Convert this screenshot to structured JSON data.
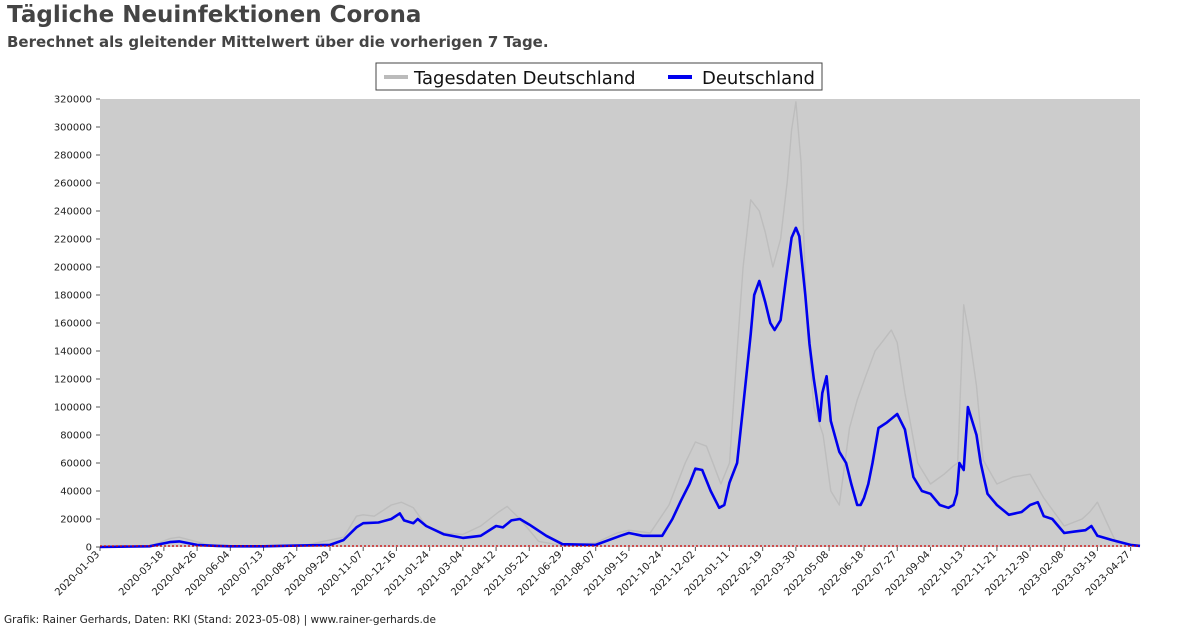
{
  "header": {
    "title": "Tägliche Neuinfektionen Corona",
    "subtitle": "Berechnet als gleitender Mittelwert über die vorherigen 7 Tage."
  },
  "footer": {
    "credit": "Grafik: Rainer Gerhards, Daten: RKI (Stand: 2023-05-08) | www.rainer-gerhards.de"
  },
  "chart_data": {
    "type": "line",
    "title": "Tägliche Neuinfektionen Corona",
    "subtitle": "Berechnet als gleitender Mittelwert über die vorherigen 7 Tage.",
    "xlabel": "",
    "ylabel": "",
    "ylim": [
      0,
      320000
    ],
    "xlim": [
      "2020-01-03",
      "2023-05-08"
    ],
    "grid": false,
    "legend_placement": "top-center",
    "x_ticks": [
      "2020-01-03",
      "2020-03-18",
      "2020-04-26",
      "2020-06-04",
      "2020-07-13",
      "2020-08-21",
      "2020-09-29",
      "2020-11-07",
      "2020-12-16",
      "2021-01-24",
      "2021-03-04",
      "2021-04-12",
      "2021-05-21",
      "2021-06-29",
      "2021-08-07",
      "2021-09-15",
      "2021-10-24",
      "2021-12-02",
      "2022-01-11",
      "2022-02-19",
      "2022-03-30",
      "2022-05-08",
      "2022-06-18",
      "2022-07-27",
      "2022-09-04",
      "2022-10-13",
      "2022-11-21",
      "2022-12-30",
      "2023-02-08",
      "2023-03-19",
      "2023-04-27"
    ],
    "y_ticks": [
      0,
      20000,
      40000,
      60000,
      80000,
      100000,
      120000,
      140000,
      160000,
      180000,
      200000,
      220000,
      240000,
      260000,
      280000,
      300000,
      320000
    ],
    "colors": {
      "plot_bg": "#cccccc",
      "daily": "#bbbbbb",
      "avg": "#0000ee",
      "baseline": "#cc0000"
    },
    "series": [
      {
        "name": "Tagesdaten Deutschland",
        "style": "daily",
        "x": [
          "2020-01-03",
          "2020-03-01",
          "2020-03-25",
          "2020-04-05",
          "2020-05-10",
          "2020-07-01",
          "2020-09-01",
          "2020-10-15",
          "2020-10-30",
          "2020-11-07",
          "2020-11-20",
          "2020-12-10",
          "2020-12-22",
          "2021-01-05",
          "2021-01-20",
          "2021-02-10",
          "2021-03-04",
          "2021-03-25",
          "2021-04-15",
          "2021-04-25",
          "2021-05-10",
          "2021-06-01",
          "2021-06-29",
          "2021-08-07",
          "2021-09-01",
          "2021-09-15",
          "2021-10-10",
          "2021-11-01",
          "2021-11-20",
          "2021-12-02",
          "2021-12-15",
          "2022-01-01",
          "2022-01-11",
          "2022-01-20",
          "2022-01-27",
          "2022-02-05",
          "2022-02-15",
          "2022-02-22",
          "2022-03-03",
          "2022-03-12",
          "2022-03-20",
          "2022-03-25",
          "2022-03-30",
          "2022-04-05",
          "2022-04-12",
          "2022-04-20",
          "2022-05-01",
          "2022-05-10",
          "2022-05-20",
          "2022-06-01",
          "2022-06-10",
          "2022-06-20",
          "2022-07-01",
          "2022-07-10",
          "2022-07-20",
          "2022-07-27",
          "2022-08-05",
          "2022-08-20",
          "2022-09-04",
          "2022-09-20",
          "2022-10-01",
          "2022-10-06",
          "2022-10-13",
          "2022-10-20",
          "2022-10-28",
          "2022-11-05",
          "2022-11-21",
          "2022-12-10",
          "2022-12-30",
          "2023-01-15",
          "2023-02-08",
          "2023-03-01",
          "2023-03-10",
          "2023-03-19",
          "2023-04-10",
          "2023-05-08"
        ],
        "values": [
          0,
          500,
          6000,
          7000,
          1500,
          500,
          1500,
          7000,
          22000,
          23000,
          22000,
          30000,
          32000,
          28000,
          15000,
          10000,
          9000,
          15000,
          25000,
          29000,
          20000,
          4000,
          1000,
          3000,
          10000,
          12000,
          10000,
          30000,
          60000,
          75000,
          72000,
          45000,
          60000,
          140000,
          200000,
          248000,
          240000,
          225000,
          200000,
          220000,
          262000,
          298000,
          318000,
          275000,
          160000,
          100000,
          80000,
          40000,
          30000,
          85000,
          105000,
          122000,
          140000,
          147000,
          155000,
          146000,
          110000,
          60000,
          45000,
          52000,
          58000,
          60000,
          173000,
          150000,
          115000,
          62000,
          45000,
          50000,
          52000,
          35000,
          15000,
          20000,
          25000,
          32000,
          3000,
          1000
        ]
      },
      {
        "name": "Deutschland",
        "style": "avg",
        "x": [
          "2020-01-03",
          "2020-03-01",
          "2020-03-25",
          "2020-04-05",
          "2020-04-26",
          "2020-05-20",
          "2020-06-04",
          "2020-07-13",
          "2020-08-21",
          "2020-09-29",
          "2020-10-15",
          "2020-10-30",
          "2020-11-07",
          "2020-11-25",
          "2020-12-10",
          "2020-12-20",
          "2020-12-25",
          "2021-01-05",
          "2021-01-10",
          "2021-01-20",
          "2021-02-10",
          "2021-03-04",
          "2021-03-25",
          "2021-04-12",
          "2021-04-20",
          "2021-04-30",
          "2021-05-10",
          "2021-05-21",
          "2021-06-10",
          "2021-06-29",
          "2021-08-07",
          "2021-09-05",
          "2021-09-15",
          "2021-10-01",
          "2021-10-24",
          "2021-11-05",
          "2021-11-15",
          "2021-11-25",
          "2021-12-02",
          "2021-12-10",
          "2021-12-20",
          "2021-12-30",
          "2022-01-05",
          "2022-01-11",
          "2022-01-20",
          "2022-01-27",
          "2022-02-05",
          "2022-02-09",
          "2022-02-15",
          "2022-02-22",
          "2022-02-28",
          "2022-03-05",
          "2022-03-12",
          "2022-03-18",
          "2022-03-25",
          "2022-03-30",
          "2022-04-03",
          "2022-04-10",
          "2022-04-15",
          "2022-04-20",
          "2022-04-23",
          "2022-04-27",
          "2022-04-30",
          "2022-05-05",
          "2022-05-10",
          "2022-05-20",
          "2022-05-28",
          "2022-06-03",
          "2022-06-10",
          "2022-06-14",
          "2022-06-18",
          "2022-06-23",
          "2022-06-28",
          "2022-07-05",
          "2022-07-15",
          "2022-07-27",
          "2022-08-05",
          "2022-08-15",
          "2022-08-25",
          "2022-09-04",
          "2022-09-15",
          "2022-09-25",
          "2022-10-01",
          "2022-10-05",
          "2022-10-08",
          "2022-10-13",
          "2022-10-18",
          "2022-10-23",
          "2022-10-28",
          "2022-11-02",
          "2022-11-10",
          "2022-11-21",
          "2022-12-05",
          "2022-12-20",
          "2022-12-30",
          "2023-01-08",
          "2023-01-15",
          "2023-01-25",
          "2023-02-08",
          "2023-02-20",
          "2023-03-05",
          "2023-03-12",
          "2023-03-19",
          "2023-04-05",
          "2023-04-27",
          "2023-05-08"
        ],
        "values": [
          0,
          500,
          3500,
          4000,
          1500,
          800,
          500,
          500,
          1000,
          1500,
          5000,
          14000,
          17000,
          17500,
          20000,
          24000,
          19000,
          17000,
          20000,
          15000,
          9000,
          6500,
          8000,
          15000,
          14000,
          19000,
          20000,
          16000,
          8000,
          2000,
          1500,
          8000,
          10000,
          8000,
          8000,
          20000,
          33000,
          45000,
          56000,
          55000,
          40000,
          28000,
          30000,
          46000,
          60000,
          100000,
          152000,
          180000,
          190000,
          175000,
          160000,
          155000,
          162000,
          190000,
          221000,
          228000,
          222000,
          180000,
          145000,
          120000,
          108000,
          90000,
          110000,
          122000,
          90000,
          68000,
          60000,
          45000,
          30000,
          30000,
          35000,
          45000,
          60000,
          85000,
          89000,
          95000,
          84000,
          50000,
          40000,
          38000,
          30000,
          28000,
          30000,
          38000,
          60000,
          55000,
          100000,
          90000,
          80000,
          60000,
          38000,
          30000,
          23000,
          25000,
          30000,
          32000,
          22000,
          20000,
          10000,
          11000,
          12000,
          15000,
          8000,
          5000,
          1500,
          800
        ]
      }
    ]
  }
}
